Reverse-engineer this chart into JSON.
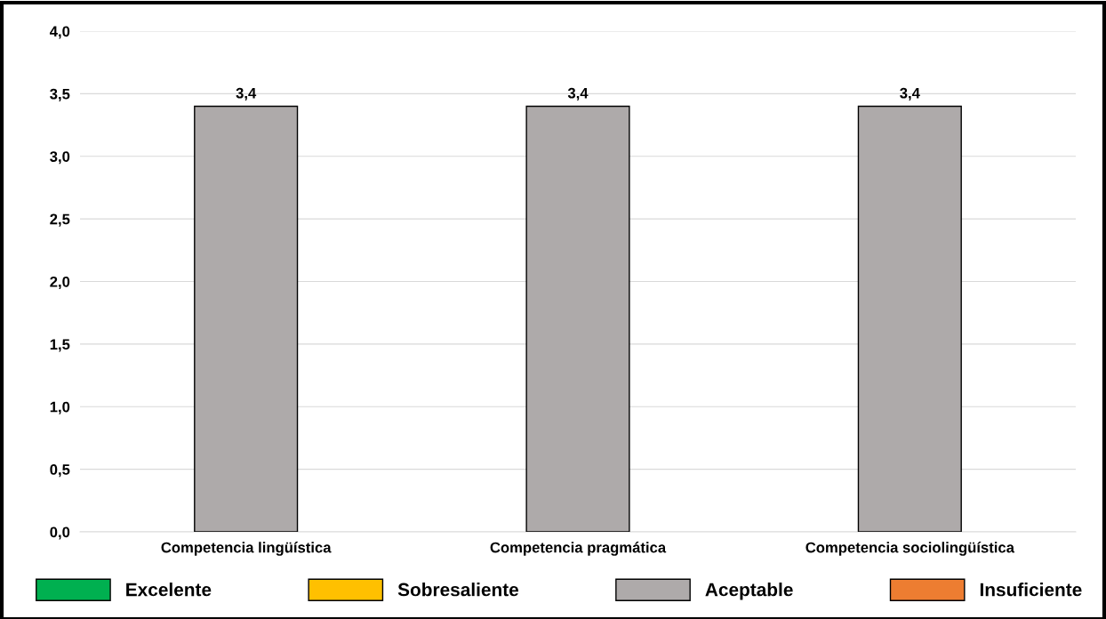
{
  "chart_data": {
    "type": "bar",
    "stacked": true,
    "categories": [
      "Competencia lingüística",
      "Competencia pragmática",
      "Competencia sociolingüística"
    ],
    "series": [
      {
        "name": "Excelente",
        "color": "#00b050",
        "values": [
          null,
          null,
          null
        ]
      },
      {
        "name": "Sobresaliente",
        "color": "#ffc000",
        "values": [
          null,
          null,
          null
        ]
      },
      {
        "name": "Aceptable",
        "color": "#aeaaaa",
        "values": [
          3.4,
          3.4,
          3.4
        ],
        "value_labels": [
          "3,4",
          "3,4",
          "3,4"
        ]
      },
      {
        "name": "Insuficiente",
        "color": "#ed7d31",
        "values": [
          null,
          null,
          null
        ]
      }
    ],
    "ylim": [
      0,
      4
    ],
    "yticks": [
      {
        "value": 0,
        "label": "0,0"
      },
      {
        "value": 0.5,
        "label": "0,5"
      },
      {
        "value": 1,
        "label": "1,0"
      },
      {
        "value": 1.5,
        "label": "1,5"
      },
      {
        "value": 2,
        "label": "2,0"
      },
      {
        "value": 2.5,
        "label": "2,5"
      },
      {
        "value": 3,
        "label": "3,0"
      },
      {
        "value": 3.5,
        "label": "3,5"
      },
      {
        "value": 4,
        "label": "4,0"
      }
    ],
    "grid": "y",
    "legend": "bottom"
  }
}
